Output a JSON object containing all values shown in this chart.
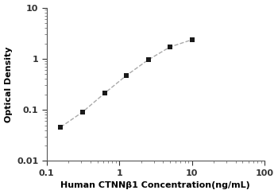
{
  "x": [
    0.156,
    0.313,
    0.625,
    1.25,
    2.5,
    5.0,
    10.0
  ],
  "y": [
    0.046,
    0.091,
    0.21,
    0.47,
    0.95,
    1.7,
    2.35
  ],
  "xlim": [
    0.1,
    100
  ],
  "ylim": [
    0.01,
    10
  ],
  "xlabel": "Human CTNNβ1 Concentration(ng/mL)",
  "ylabel": "Optical Density",
  "line_color": "#aaaaaa",
  "line_style": "--",
  "marker_color": "#1a1a1a",
  "marker": "s",
  "marker_size": 4.5,
  "background_color": "#ffffff",
  "tick_label_fontsize": 8,
  "xlabel_fontsize": 8,
  "ylabel_fontsize": 8,
  "spine_color": "#555555",
  "spine_linewidth": 0.8
}
